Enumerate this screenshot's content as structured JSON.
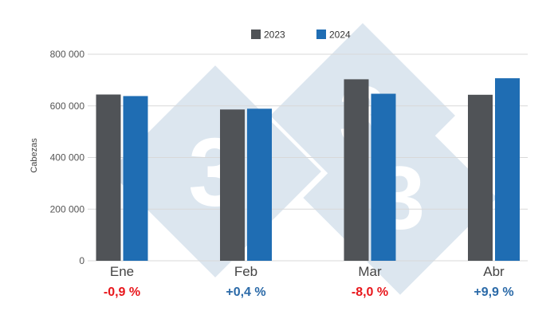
{
  "chart_data": {
    "type": "bar",
    "title": "",
    "xlabel": "",
    "ylabel": "Cabezas",
    "categories": [
      "Ene",
      "Feb",
      "Mar",
      "Abr"
    ],
    "series": [
      {
        "name": "2023",
        "values": [
          644000,
          586000,
          703000,
          643000
        ],
        "color": "#505357"
      },
      {
        "name": "2024",
        "values": [
          638000,
          589000,
          647000,
          707000
        ],
        "color": "#1f6db3"
      }
    ],
    "ylim": [
      0,
      800000
    ],
    "yticks": [
      "0",
      "200 000",
      "400 000",
      "600 000",
      "800 000"
    ],
    "ytick_values": [
      0,
      200000,
      400000,
      600000,
      800000
    ],
    "grid": true,
    "legend": "top-center",
    "annotations": [
      {
        "text": "-0,9 %",
        "color": "#e8161b"
      },
      {
        "text": "+0,4 %",
        "color": "#2b6aa8"
      },
      {
        "text": "-8,0 %",
        "color": "#e8161b"
      },
      {
        "text": "+9,9 %",
        "color": "#2b6aa8"
      }
    ]
  },
  "watermark": {
    "text": "3",
    "color": "#dce6ef"
  }
}
